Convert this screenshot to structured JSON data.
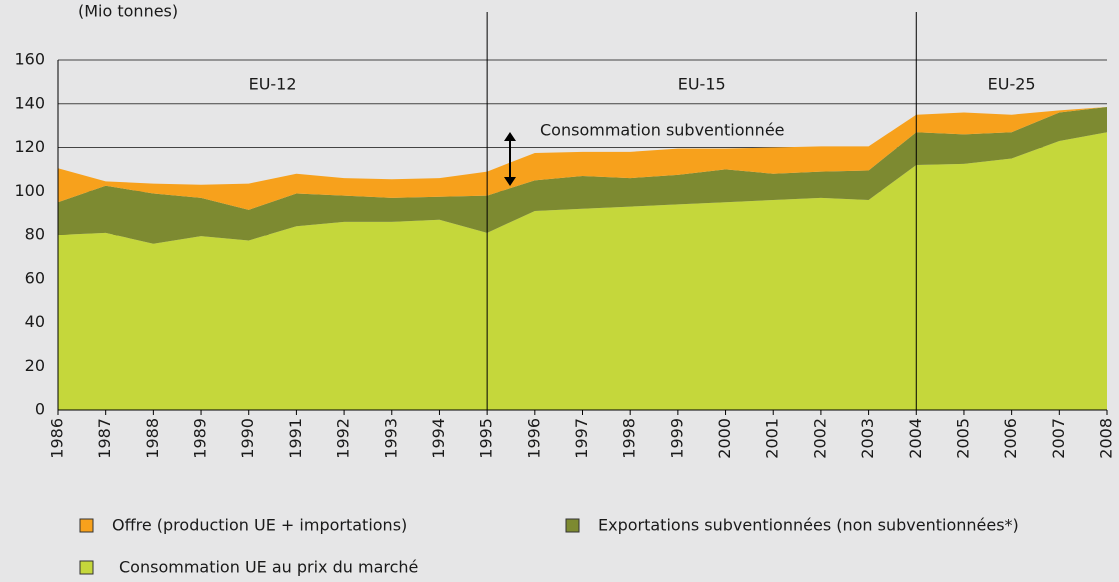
{
  "chart_data": {
    "type": "stacked_area",
    "y_label": "(Mio tonnes)",
    "categories": [
      "1986",
      "1987",
      "1988",
      "1989",
      "1990",
      "1991",
      "1992",
      "1993",
      "1994",
      "1995",
      "1996",
      "1997",
      "1998",
      "1999",
      "2000",
      "2001",
      "2002",
      "2003",
      "2004",
      "2005",
      "2006",
      "2007",
      "2008"
    ],
    "series": [
      {
        "name": "Consommation UE au prix du marché",
        "color": "#c5d73b",
        "values": [
          80,
          81,
          76,
          79.5,
          77.5,
          84,
          86,
          86,
          87,
          81,
          91,
          92,
          93,
          94,
          95,
          96,
          97,
          96,
          112,
          112.5,
          115,
          123,
          127
        ]
      },
      {
        "name": "Exportations subventionnées (non subventionnées*)",
        "color": "#7d8a31",
        "values": [
          15,
          21.5,
          23,
          17.5,
          14,
          15,
          12,
          11,
          10.5,
          17,
          14,
          15,
          13,
          13.5,
          15,
          12,
          12,
          13.5,
          15,
          13.5,
          12,
          13,
          11.5
        ]
      },
      {
        "name": "Offre (production UE + importations)",
        "color": "#f7a11c",
        "values": [
          15.5,
          2,
          4.5,
          6,
          12,
          9,
          8,
          8.5,
          8.5,
          11,
          12.5,
          11,
          12,
          12,
          9.5,
          12,
          11.5,
          11,
          8,
          10,
          8,
          1,
          0
        ]
      }
    ],
    "periods": [
      {
        "label": "EU-12",
        "start": "1986",
        "end": "1995"
      },
      {
        "label": "EU-15",
        "start": "1995",
        "end": "2004"
      },
      {
        "label": "EU-25",
        "start": "2004",
        "end": "2008"
      }
    ],
    "annotation": "Consommation subventionnée",
    "ylim": [
      0,
      160
    ],
    "yticks": [
      0,
      20,
      40,
      60,
      80,
      100,
      120,
      140,
      160
    ],
    "grid": true
  }
}
